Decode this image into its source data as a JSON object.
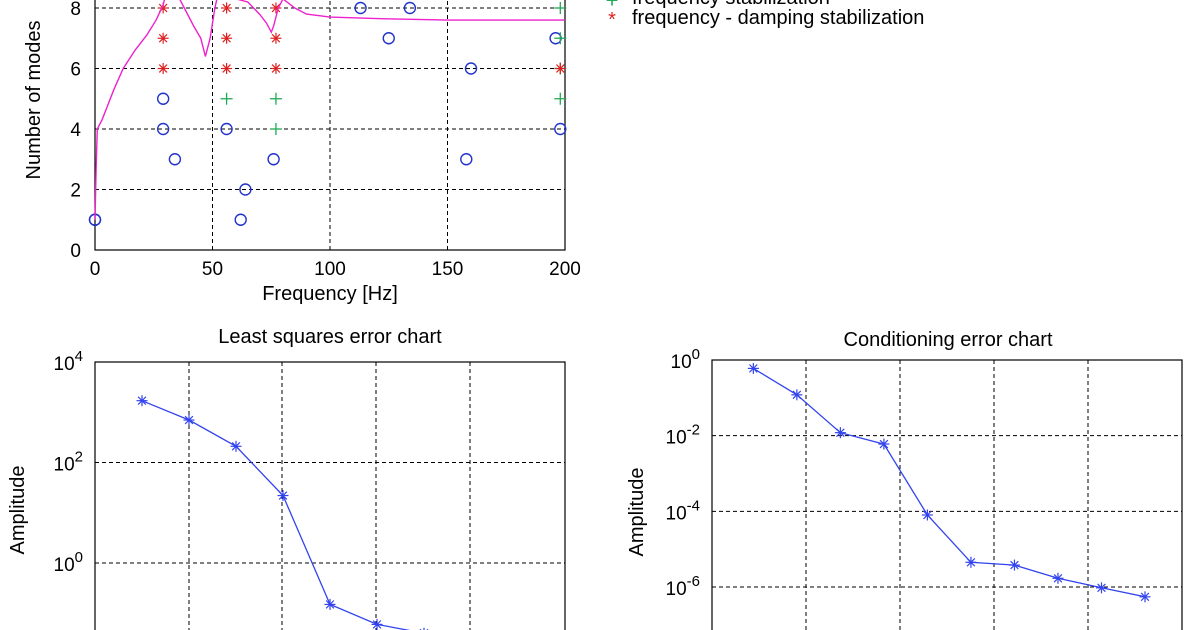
{
  "chart_data": [
    {
      "type": "scatter",
      "title": "",
      "xlabel": "Frequency  [Hz]",
      "ylabel": "Number of modes",
      "xlim": [
        0,
        200
      ],
      "ylim": [
        0,
        8.6
      ],
      "xticks": [
        0,
        50,
        100,
        150,
        200
      ],
      "yticks": [
        0,
        2,
        4,
        6,
        8
      ],
      "grid": true,
      "legend_position": "right",
      "legend": [
        {
          "label": "frequency stabilization",
          "marker": "+",
          "color": "#22aa55"
        },
        {
          "label": "frequency - damping stabilization",
          "marker": "*",
          "color": "#dd2222"
        }
      ],
      "series": [
        {
          "marker": "o",
          "color": "#2233cc",
          "points": [
            [
              0,
              1
            ],
            [
              0,
              1
            ],
            [
              62,
              1
            ],
            [
              64,
              2
            ],
            [
              34,
              3
            ],
            [
              76,
              3
            ],
            [
              158,
              3
            ],
            [
              29,
              4
            ],
            [
              56,
              4
            ],
            [
              198,
              4
            ],
            [
              29,
              5
            ],
            [
              160,
              6
            ],
            [
              125,
              7
            ],
            [
              196,
              7
            ],
            [
              113,
              8
            ],
            [
              134,
              8
            ]
          ]
        },
        {
          "marker": "+",
          "color": "#22aa55",
          "points": [
            [
              56,
              5
            ],
            [
              77,
              5
            ],
            [
              198,
              5
            ],
            [
              77,
              4
            ],
            [
              198,
              6
            ],
            [
              198,
              7
            ],
            [
              198,
              8
            ]
          ]
        },
        {
          "marker": "*",
          "color": "#dd2222",
          "points": [
            [
              29,
              6
            ],
            [
              29,
              7
            ],
            [
              29,
              8
            ],
            [
              56,
              6
            ],
            [
              56,
              7
            ],
            [
              56,
              8
            ],
            [
              77,
              6
            ],
            [
              77,
              7
            ],
            [
              77,
              8
            ],
            [
              198,
              6
            ]
          ]
        },
        {
          "type": "line",
          "color": "#ee22cc",
          "points": [
            [
              0,
              1
            ],
            [
              0.5,
              2.8
            ],
            [
              1,
              4
            ],
            [
              3,
              4.3
            ],
            [
              5,
              4.7
            ],
            [
              8,
              5.3
            ],
            [
              12,
              6
            ],
            [
              17,
              6.6
            ],
            [
              22,
              7.1
            ],
            [
              26,
              7.6
            ],
            [
              29,
              8.1
            ],
            [
              31,
              8.7
            ],
            [
              34,
              8.6
            ],
            [
              38,
              8
            ],
            [
              42,
              7.4
            ],
            [
              45,
              7
            ],
            [
              47,
              6.4
            ],
            [
              49,
              7
            ],
            [
              51,
              8
            ],
            [
              53,
              8.7
            ],
            [
              56,
              8.6
            ],
            [
              60,
              8.3
            ],
            [
              65,
              8.2
            ],
            [
              70,
              7.8
            ],
            [
              73,
              7.5
            ],
            [
              75,
              7.2
            ],
            [
              76,
              7.4
            ],
            [
              78,
              8
            ],
            [
              80,
              8.3
            ],
            [
              85,
              8
            ],
            [
              90,
              7.8
            ],
            [
              100,
              7.7
            ],
            [
              120,
              7.65
            ],
            [
              150,
              7.6
            ],
            [
              200,
              7.6
            ]
          ]
        }
      ]
    },
    {
      "type": "line",
      "title": "Least squares error chart",
      "xlabel": "",
      "ylabel": "Amplitude",
      "yscale": "log",
      "ylim_exp": [
        -1.3,
        4
      ],
      "yticks": [
        {
          "base": "10",
          "exp": "4"
        },
        {
          "base": "10",
          "exp": "2"
        },
        {
          "base": "10",
          "exp": "0"
        }
      ],
      "grid": true,
      "marker": "*",
      "color": "#3344ee",
      "x": [
        1,
        2,
        3,
        4,
        5,
        6,
        7
      ],
      "values": [
        1700,
        700,
        210,
        22,
        0.15,
        0.06,
        0.04
      ],
      "xlim": [
        0,
        10
      ]
    },
    {
      "type": "line",
      "title": "Conditioning error chart",
      "xlabel": "",
      "ylabel": "Amplitude",
      "yscale": "log",
      "ylim_exp": [
        -7.2,
        0.3
      ],
      "yticks": [
        {
          "base": "10",
          "exp": "0"
        },
        {
          "base": "10",
          "exp": "-2"
        },
        {
          "base": "10",
          "exp": "-4"
        },
        {
          "base": "10",
          "exp": "-6"
        }
      ],
      "grid": true,
      "marker": "*",
      "color": "#3344ee",
      "x": [
        1,
        2,
        3,
        4,
        5,
        6,
        7,
        8,
        9,
        10
      ],
      "values": [
        0.6,
        0.12,
        0.012,
        0.006,
        8e-05,
        4.5e-06,
        3.8e-06,
        1.7e-06,
        9.5e-07,
        5.5e-07
      ],
      "xlim": [
        1,
        10
      ]
    }
  ]
}
